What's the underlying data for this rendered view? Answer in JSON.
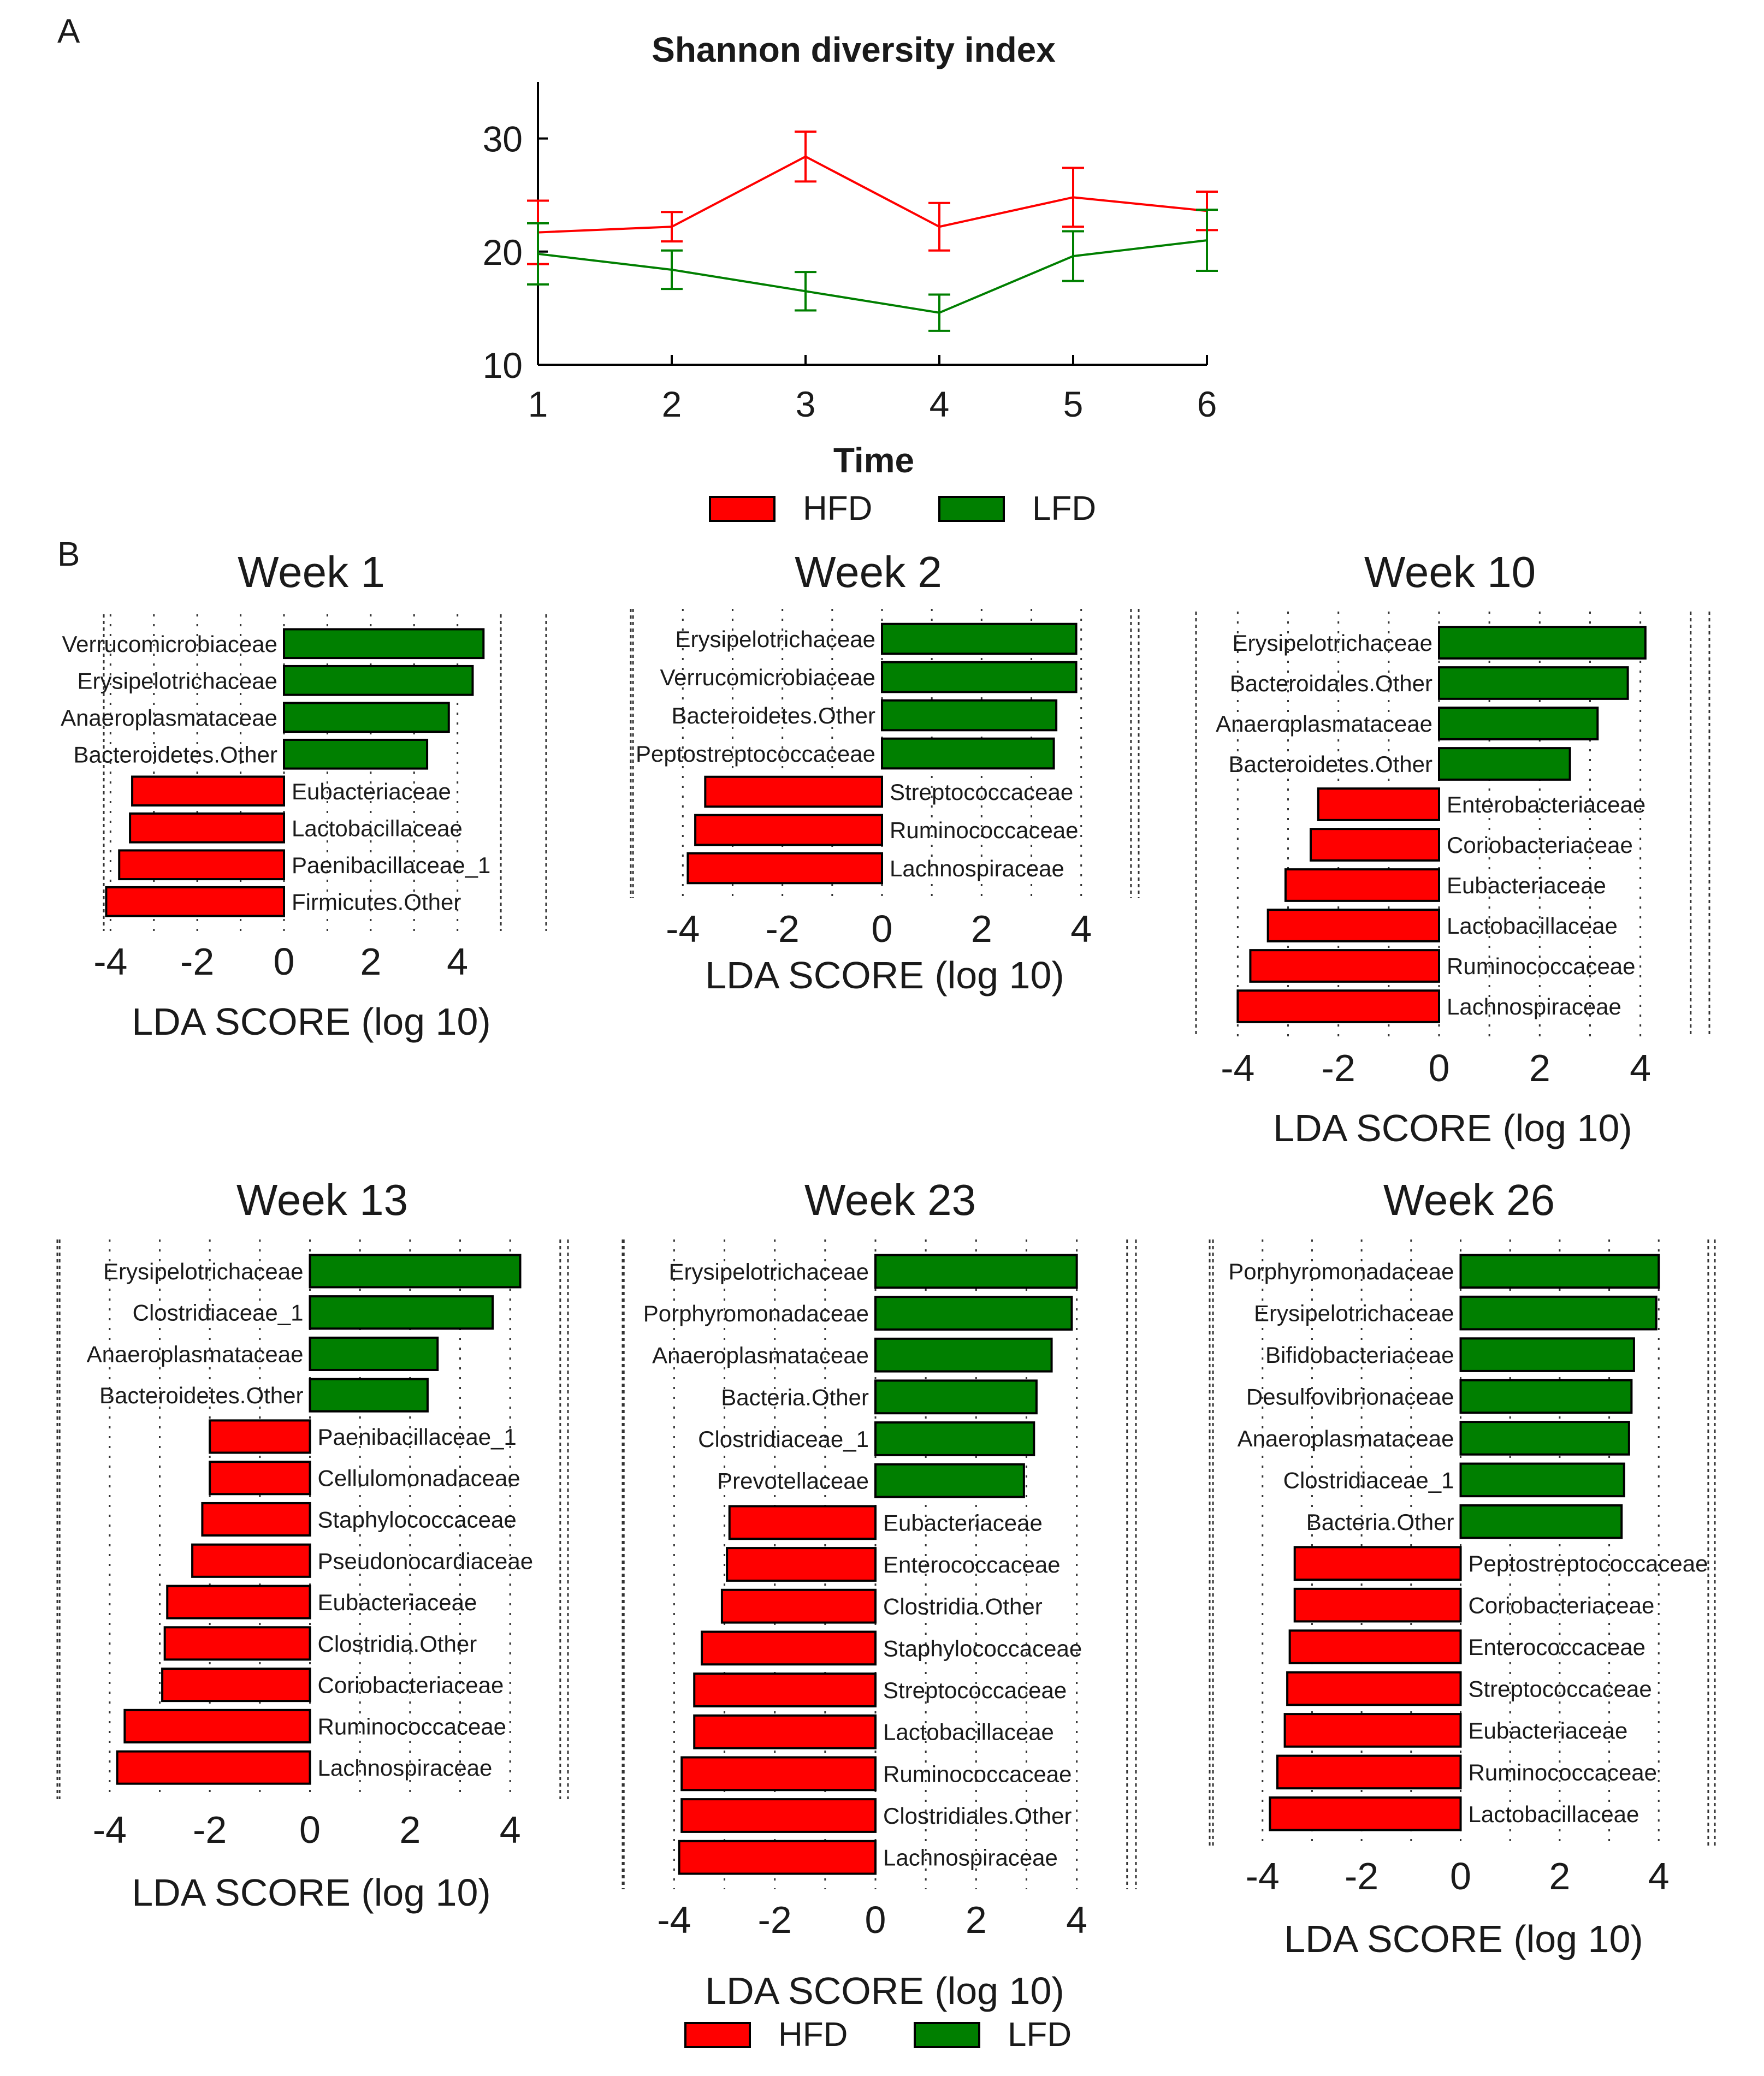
{
  "panels": {
    "a": "A",
    "b": "B"
  },
  "colors": {
    "hfd": "#ff0000",
    "lfd": "#007f00",
    "axis": "#000000",
    "text": "#1a1a1a"
  },
  "chart_data": [
    {
      "id": "shannon",
      "type": "line",
      "title": "Shannon diversity index",
      "xlabel": "Time",
      "ylabel": "",
      "x": [
        1,
        2,
        3,
        4,
        5,
        6
      ],
      "xlim": [
        1,
        6
      ],
      "ylim": [
        10,
        35
      ],
      "xticks": [
        "1",
        "2",
        "3",
        "4",
        "5",
        "6"
      ],
      "yticks": [
        "10",
        "20",
        "30"
      ],
      "series": [
        {
          "name": "HFD",
          "color": "#ff0000",
          "values": [
            21.7,
            22.2,
            28.4,
            22.2,
            24.8,
            23.6
          ],
          "err": [
            2.8,
            1.3,
            2.2,
            2.1,
            2.6,
            1.7
          ]
        },
        {
          "name": "LFD",
          "color": "#007f00",
          "values": [
            19.8,
            18.4,
            16.5,
            14.6,
            19.6,
            21.0
          ],
          "err": [
            2.7,
            1.7,
            1.7,
            1.6,
            2.2,
            2.7
          ]
        }
      ],
      "legend": [
        "HFD",
        "LFD"
      ]
    },
    {
      "id": "week1",
      "type": "bar",
      "orientation": "horizontal",
      "title": "Week 1",
      "xlabel": "LDA SCORE (log 10)",
      "xlim": [
        -4.1,
        4.6
      ],
      "xticks": [
        "-4",
        "-2",
        "0",
        "2",
        "4"
      ],
      "categories": [
        "Verrucomicrobiaceae",
        "Erysipelotrichaceae",
        "Anaeroplasmataceae",
        "Bacteroidetes.Other",
        "Eubacteriaceae",
        "Lactobacillaceae",
        "Paenibacillaceae_1",
        "Firmicutes.Other"
      ],
      "values": [
        4.6,
        4.35,
        3.8,
        3.3,
        -3.5,
        -3.55,
        -3.8,
        -4.1
      ],
      "groups": [
        "LFD",
        "LFD",
        "LFD",
        "LFD",
        "HFD",
        "HFD",
        "HFD",
        "HFD"
      ]
    },
    {
      "id": "week2",
      "type": "bar",
      "orientation": "horizontal",
      "title": "Week 2",
      "xlabel": "LDA SCORE (log 10)",
      "xlim": [
        -4.0,
        4.0
      ],
      "xticks": [
        "-4",
        "-2",
        "0",
        "2",
        "4"
      ],
      "categories": [
        "Erysipelotrichaceae",
        "Verrucomicrobiaceae",
        "Bacteroidetes.Other",
        "Peptostreptococcaceae",
        "Streptococcaceae",
        "Ruminococcaceae",
        "Lachnospiraceae"
      ],
      "values": [
        3.9,
        3.9,
        3.5,
        3.45,
        -3.55,
        -3.75,
        -3.9
      ],
      "groups": [
        "LFD",
        "LFD",
        "LFD",
        "LFD",
        "HFD",
        "HFD",
        "HFD"
      ]
    },
    {
      "id": "week10",
      "type": "bar",
      "orientation": "horizontal",
      "title": "Week 10",
      "xlabel": "LDA SCORE (log 10)",
      "xlim": [
        -4.0,
        4.1
      ],
      "xticks": [
        "-4",
        "-2",
        "0",
        "2",
        "4"
      ],
      "categories": [
        "Erysipelotrichaceae",
        "Bacteroidales.Other",
        "Anaeroplasmataceae",
        "Bacteroidetes.Other",
        "Enterobacteriaceae",
        "Coriobacteriaceae",
        "Eubacteriaceae",
        "Lactobacillaceae",
        "Ruminococcaceae",
        "Lachnospiraceae"
      ],
      "values": [
        4.1,
        3.75,
        3.15,
        2.6,
        -2.4,
        -2.55,
        -3.05,
        -3.4,
        -3.75,
        -4.0
      ],
      "groups": [
        "LFD",
        "LFD",
        "LFD",
        "LFD",
        "HFD",
        "HFD",
        "HFD",
        "HFD",
        "HFD",
        "HFD"
      ]
    },
    {
      "id": "week13",
      "type": "bar",
      "orientation": "horizontal",
      "title": "Week 13",
      "xlabel": "LDA SCORE (log 10)",
      "xlim": [
        -3.85,
        4.2
      ],
      "xticks": [
        "-4",
        "-2",
        "0",
        "2",
        "4"
      ],
      "categories": [
        "Erysipelotrichaceae",
        "Clostridiaceae_1",
        "Anaeroplasmataceae",
        "Bacteroidetes.Other",
        "Paenibacillaceae_1",
        "Cellulomonadaceae",
        "Staphylococcaceae",
        "Pseudonocardiaceae",
        "Eubacteriaceae",
        "Clostridia.Other",
        "Coriobacteriaceae",
        "Ruminococcaceae",
        "Lachnospiraceae"
      ],
      "values": [
        4.2,
        3.65,
        2.55,
        2.35,
        -2.0,
        -2.0,
        -2.15,
        -2.35,
        -2.85,
        -2.9,
        -2.95,
        -3.7,
        -3.85
      ],
      "groups": [
        "LFD",
        "LFD",
        "LFD",
        "LFD",
        "HFD",
        "HFD",
        "HFD",
        "HFD",
        "HFD",
        "HFD",
        "HFD",
        "HFD",
        "HFD"
      ]
    },
    {
      "id": "week23",
      "type": "bar",
      "orientation": "horizontal",
      "title": "Week 23",
      "xlabel": "LDA SCORE (log 10)",
      "xlim": [
        -3.9,
        4.0
      ],
      "xticks": [
        "-4",
        "-2",
        "0",
        "2",
        "4"
      ],
      "categories": [
        "Erysipelotrichaceae",
        "Porphyromonadaceae",
        "Anaeroplasmataceae",
        "Bacteria.Other",
        "Clostridiaceae_1",
        "Prevotellaceae",
        "Eubacteriaceae",
        "Enterococcaceae",
        "Clostridia.Other",
        "Staphylococcaceae",
        "Streptococcaceae",
        "Lactobacillaceae",
        "Ruminococcaceae",
        "Clostridiales.Other",
        "Lachnospiraceae"
      ],
      "values": [
        4.0,
        3.9,
        3.5,
        3.2,
        3.15,
        2.95,
        -2.9,
        -2.95,
        -3.05,
        -3.45,
        -3.6,
        -3.6,
        -3.85,
        -3.85,
        -3.9
      ],
      "groups": [
        "LFD",
        "LFD",
        "LFD",
        "LFD",
        "LFD",
        "LFD",
        "HFD",
        "HFD",
        "HFD",
        "HFD",
        "HFD",
        "HFD",
        "HFD",
        "HFD",
        "HFD"
      ]
    },
    {
      "id": "week26",
      "type": "bar",
      "orientation": "horizontal",
      "title": "Week 26",
      "xlabel": "LDA SCORE (log 10)",
      "xlim": [
        -3.85,
        4.0
      ],
      "xticks": [
        "-4",
        "-2",
        "0",
        "2",
        "4"
      ],
      "categories": [
        "Porphyromonadaceae",
        "Erysipelotrichaceae",
        "Bifidobacteriaceae",
        "Desulfovibrionaceae",
        "Anaeroplasmataceae",
        "Clostridiaceae_1",
        "Bacteria.Other",
        "Peptostreptococcaceae",
        "Coriobacteriaceae",
        "Enterococcaceae",
        "Streptococcaceae",
        "Eubacteriaceae",
        "Ruminococcaceae",
        "Lactobacillaceae"
      ],
      "values": [
        4.0,
        3.95,
        3.5,
        3.45,
        3.4,
        3.3,
        3.25,
        -3.35,
        -3.35,
        -3.45,
        -3.5,
        -3.55,
        -3.7,
        -3.85
      ],
      "groups": [
        "LFD",
        "LFD",
        "LFD",
        "LFD",
        "LFD",
        "LFD",
        "LFD",
        "HFD",
        "HFD",
        "HFD",
        "HFD",
        "HFD",
        "HFD",
        "HFD"
      ]
    }
  ],
  "legend_bottom": [
    "HFD",
    "LFD"
  ]
}
